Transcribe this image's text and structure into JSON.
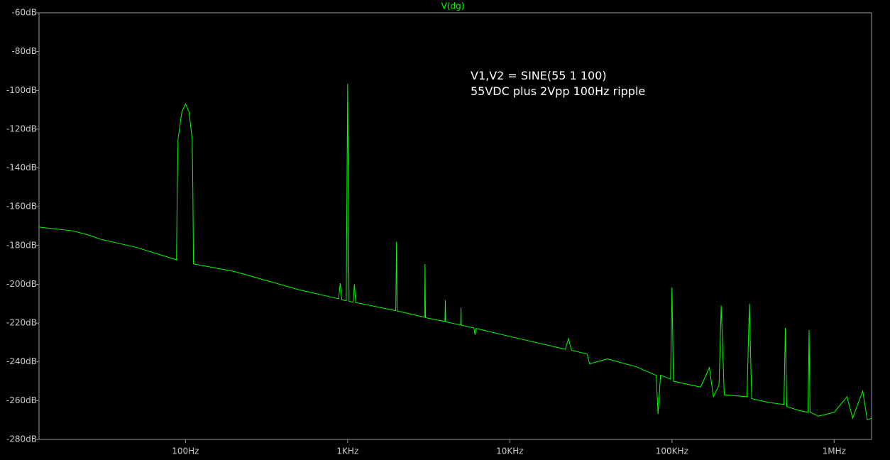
{
  "chart_data": {
    "type": "line",
    "xscale": "log",
    "xlim": [
      12.5,
      1700000
    ],
    "ylim": [
      -280,
      -60
    ],
    "yticks": [
      {
        "value": -60,
        "label": "-60dB"
      },
      {
        "value": -80,
        "label": "-80dB"
      },
      {
        "value": -100,
        "label": "-100dB"
      },
      {
        "value": -120,
        "label": "-120dB"
      },
      {
        "value": -140,
        "label": "-140dB"
      },
      {
        "value": -160,
        "label": "-160dB"
      },
      {
        "value": -180,
        "label": "-180dB"
      },
      {
        "value": -200,
        "label": "-200dB"
      },
      {
        "value": -220,
        "label": "-220dB"
      },
      {
        "value": -240,
        "label": "-240dB"
      },
      {
        "value": -260,
        "label": "-260dB"
      },
      {
        "value": -280,
        "label": "-280dB"
      }
    ],
    "xticks": [
      {
        "value": 100,
        "label": "100Hz"
      },
      {
        "value": 1000,
        "label": "1KHz"
      },
      {
        "value": 10000,
        "label": "10KHz"
      },
      {
        "value": 100000,
        "label": "100KHz"
      },
      {
        "value": 1000000,
        "label": "1MHz"
      }
    ],
    "annotations": [
      "V1,V2 = SINE(55 1 100)",
      "55VDC plus 2Vpp 100Hz ripple"
    ],
    "x": [
      12.5,
      20,
      25,
      30,
      50,
      88,
      89,
      90,
      95,
      100,
      105,
      110,
      111,
      112,
      200,
      500,
      880,
      900,
      920,
      980,
      990,
      1000,
      1010,
      1020,
      1080,
      1100,
      1120,
      1980,
      2000,
      2020,
      2980,
      3000,
      3020,
      3980,
      4000,
      4020,
      4980,
      5000,
      5020,
      6000,
      6100,
      6200,
      10000,
      22000,
      23000,
      24000,
      30000,
      31000,
      40000,
      60000,
      80000,
      82000,
      85000,
      98000,
      100000,
      102000,
      150000,
      170000,
      180000,
      195000,
      201000,
      210000,
      290000,
      300000,
      310000,
      400000,
      490000,
      500000,
      510000,
      600000,
      690000,
      700000,
      710000,
      800000,
      1000000,
      1200000,
      1300000,
      1500000,
      1600000,
      1700000
    ],
    "series": [
      {
        "name": "V(dg)",
        "color": "#00ff00",
        "values": [
          -170.5,
          -172.4,
          -174.5,
          -176.8,
          -181,
          -187.4,
          -150,
          -125,
          -111,
          -107,
          -111,
          -125,
          -150,
          -189.5,
          -193.4,
          -202.8,
          -207.5,
          -199.5,
          -208,
          -208.5,
          -152,
          -96.6,
          -155,
          -208.8,
          -209.2,
          -200,
          -209.4,
          -213.6,
          -178.2,
          -213.8,
          -217,
          -189.6,
          -217.2,
          -219.2,
          -208.2,
          -219.3,
          -221,
          -212,
          -221.1,
          -222.5,
          -226,
          -222.8,
          -226.9,
          -233.5,
          -228,
          -234,
          -236,
          -241,
          -238.5,
          -242.5,
          -247,
          -267,
          -246.8,
          -249,
          -201.7,
          -250,
          -253,
          -243,
          -258,
          -252,
          -211,
          -257,
          -258,
          -210,
          -259,
          -261,
          -262,
          -222.5,
          -263,
          -265,
          -266,
          -223.6,
          -266,
          -268,
          -266,
          -258,
          -269,
          -255,
          -270,
          -269
        ]
      }
    ]
  }
}
